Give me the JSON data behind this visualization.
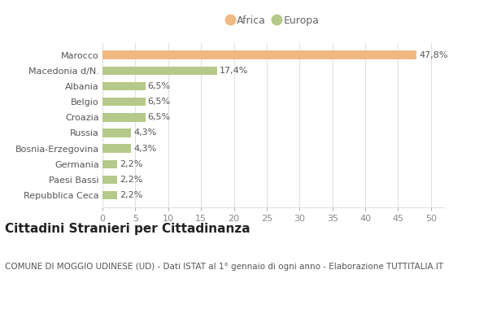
{
  "categories": [
    "Repubblica Ceca",
    "Paesi Bassi",
    "Germania",
    "Bosnia-Erzegovina",
    "Russia",
    "Croazia",
    "Belgio",
    "Albania",
    "Macedonia d/N.",
    "Marocco"
  ],
  "values": [
    2.2,
    2.2,
    2.2,
    4.3,
    4.3,
    6.5,
    6.5,
    6.5,
    17.4,
    47.8
  ],
  "labels": [
    "2,2%",
    "2,2%",
    "2,2%",
    "4,3%",
    "4,3%",
    "6,5%",
    "6,5%",
    "6,5%",
    "17,4%",
    "47,8%"
  ],
  "colors": [
    "#b5c98a",
    "#b5c98a",
    "#b5c98a",
    "#b5c98a",
    "#b5c98a",
    "#b5c98a",
    "#b5c98a",
    "#b5c98a",
    "#b5c98a",
    "#f0b982"
  ],
  "africa_color": "#f0b982",
  "europa_color": "#b5c98a",
  "xlim": [
    0,
    52
  ],
  "xticks": [
    0,
    5,
    10,
    15,
    20,
    25,
    30,
    35,
    40,
    45,
    50
  ],
  "title": "Cittadini Stranieri per Cittadinanza",
  "subtitle": "COMUNE DI MOGGIO UDINESE (UD) - Dati ISTAT al 1° gennaio di ogni anno - Elaborazione TUTTITALIA.IT",
  "background_color": "#ffffff",
  "bar_height": 0.55,
  "label_fontsize": 8,
  "tick_fontsize": 8,
  "ytick_fontsize": 8,
  "title_fontsize": 11,
  "subtitle_fontsize": 7.5,
  "legend_fontsize": 9,
  "grid_color": "#e0e0e0",
  "label_color": "#555555",
  "ytick_color": "#555555",
  "xtick_color": "#888888"
}
